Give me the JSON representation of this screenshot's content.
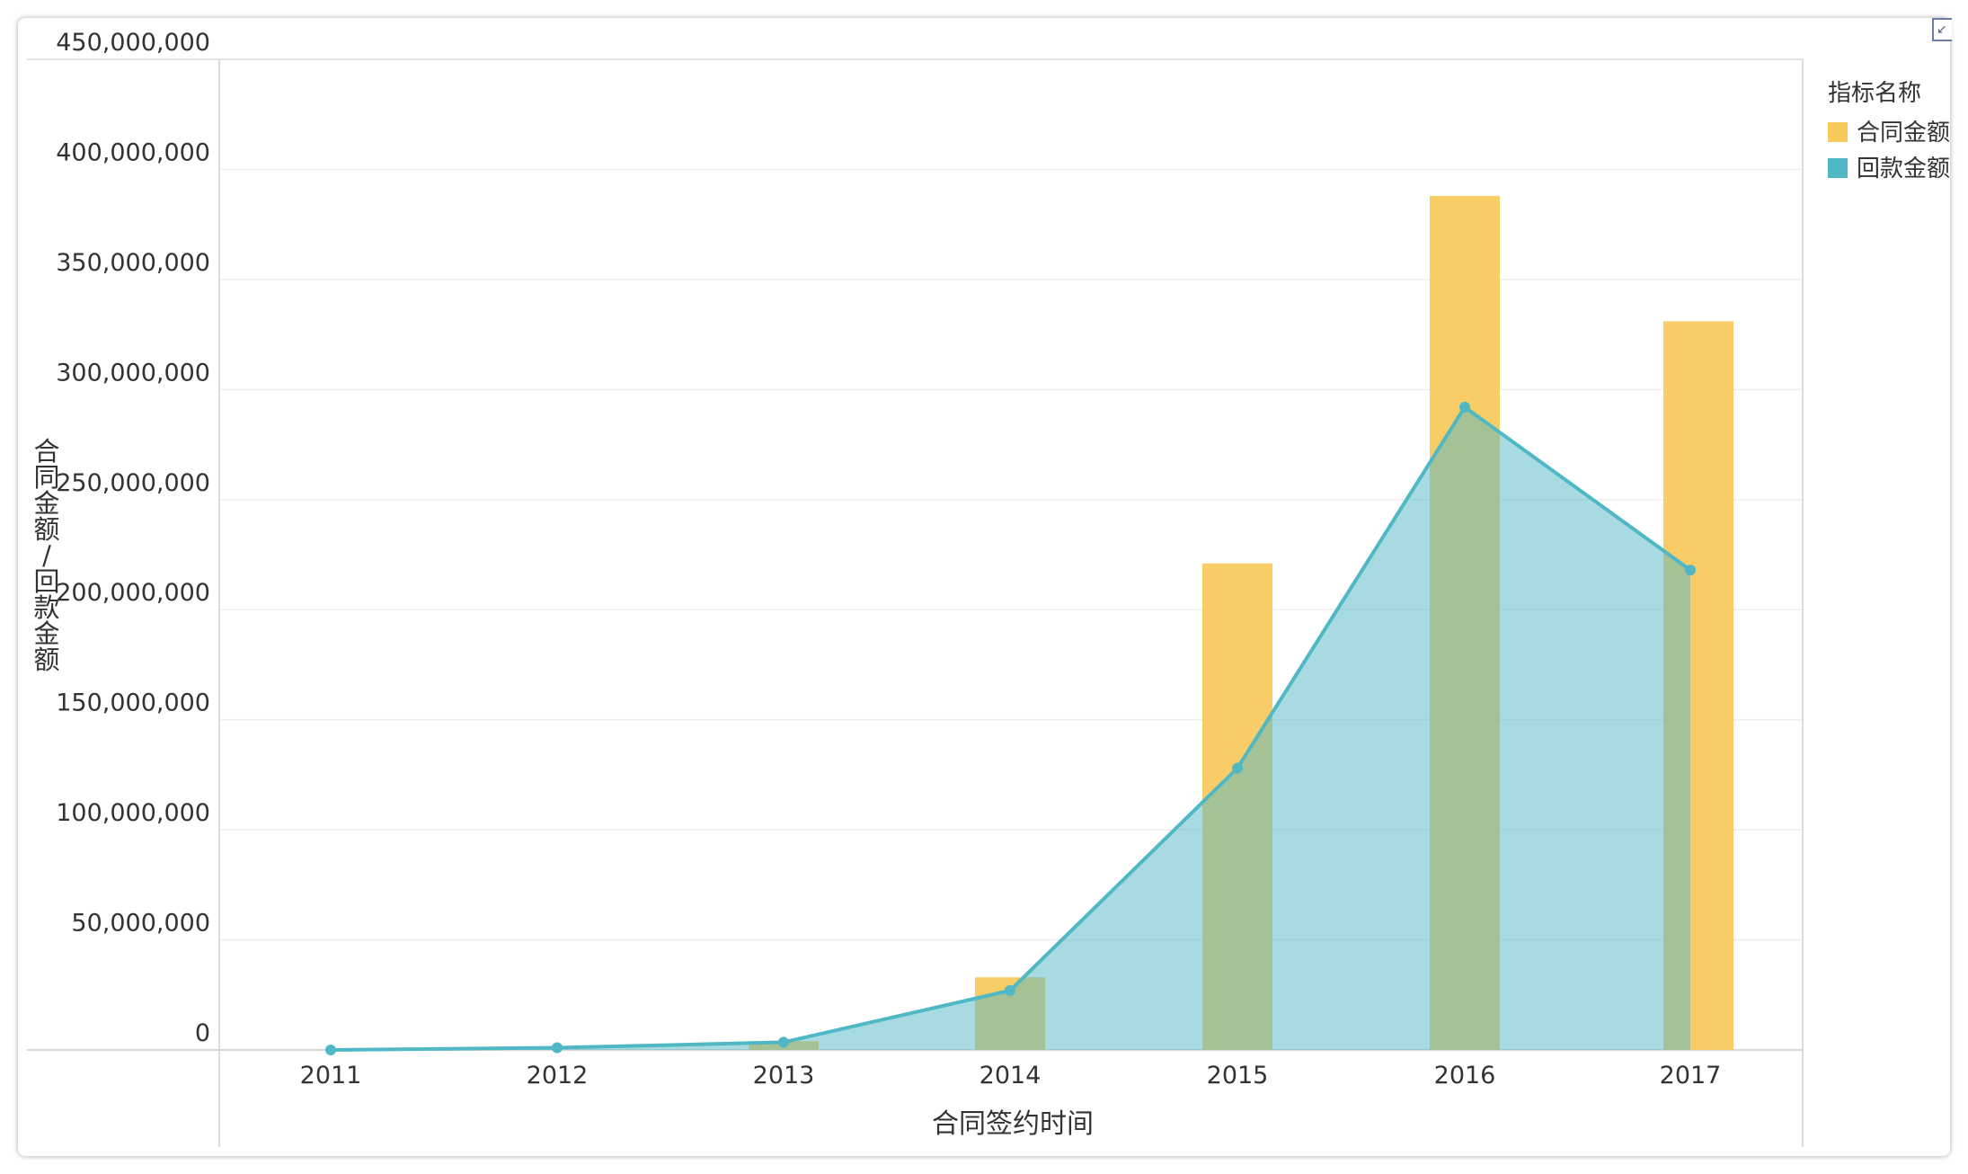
{
  "chart_data": {
    "type": "bar",
    "categories": [
      "2011",
      "2012",
      "2013",
      "2014",
      "2015",
      "2016",
      "2017"
    ],
    "series": [
      {
        "name": "合同金额",
        "type": "bar",
        "color": "#f7c85a",
        "values": [
          0,
          0,
          4000000,
          33000000,
          221000000,
          388000000,
          331000000
        ]
      },
      {
        "name": "回款金额",
        "type": "area",
        "color": "#4fb8c4",
        "values": [
          0,
          1000000,
          3500000,
          27000000,
          128000000,
          292000000,
          218000000
        ]
      }
    ],
    "title": "",
    "xlabel": "合同签约时间",
    "ylabel": "合同金额/回款金额",
    "ylim": [
      0,
      450000000
    ],
    "yticks": [
      "0",
      "50,000,000",
      "100,000,000",
      "150,000,000",
      "200,000,000",
      "250,000,000",
      "300,000,000",
      "350,000,000",
      "400,000,000",
      "450,000,000"
    ],
    "grid": true,
    "legend": {
      "title": "指标名称",
      "position": "right"
    }
  },
  "icons": {
    "corner": "expand-icon"
  }
}
